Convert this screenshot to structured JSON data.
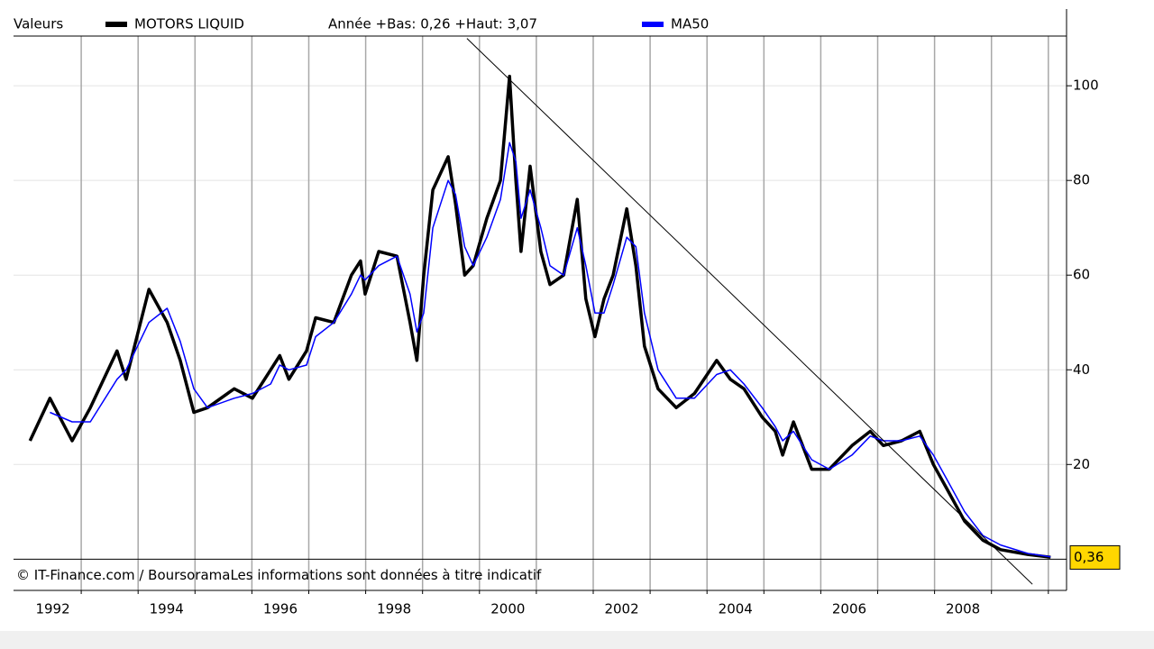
{
  "chart_data": {
    "type": "line",
    "legend_title": "Valeurs",
    "stats": "Année +Bas: 0,26 +Haut: 3,07",
    "footer": "© IT-Finance.com / BoursoramaLes informations sont données à titre indicatif",
    "x": [
      1992.1,
      1992.45,
      1992.84,
      1993.16,
      1993.63,
      1993.79,
      1994.19,
      1994.51,
      1994.74,
      1994.98,
      1995.22,
      1995.69,
      1996.01,
      1996.33,
      1996.49,
      1996.65,
      1996.96,
      1997.12,
      1997.44,
      1997.75,
      1997.91,
      1997.99,
      1998.23,
      1998.55,
      1998.78,
      1998.9,
      1999.02,
      1999.18,
      1999.45,
      1999.58,
      1999.74,
      1999.89,
      2000.13,
      2000.37,
      2000.53,
      2000.64,
      2000.73,
      2000.89,
      2001.08,
      2001.24,
      2001.48,
      2001.72,
      2001.87,
      2002.03,
      2002.19,
      2002.35,
      2002.59,
      2002.75,
      2002.9,
      2003.14,
      2003.46,
      2003.78,
      2004.17,
      2004.41,
      2004.65,
      2004.97,
      2005.2,
      2005.33,
      2005.52,
      2005.84,
      2006.15,
      2006.55,
      2006.87,
      2007.1,
      2007.42,
      2007.74,
      2007.98,
      2008.21,
      2008.53,
      2008.85,
      2009.16,
      2009.64,
      2010.04
    ],
    "series": [
      {
        "name": "MOTORS LIQUID",
        "color": "#000000",
        "values": [
          25,
          34,
          25,
          32,
          44,
          38,
          57,
          50,
          42,
          31,
          32,
          36,
          34,
          40,
          43,
          38,
          44,
          51,
          50,
          60,
          63,
          56,
          65,
          64,
          50,
          42,
          60,
          78,
          85,
          75,
          60,
          62,
          72,
          80,
          102,
          80,
          65,
          83,
          65,
          58,
          60,
          76,
          55,
          47,
          55,
          60,
          74,
          62,
          45,
          36,
          32,
          35,
          42,
          38,
          36,
          30,
          27,
          22,
          29,
          19,
          19,
          24,
          27,
          24,
          25,
          27,
          20,
          15,
          8,
          4,
          2,
          1,
          0.4
        ]
      },
      {
        "name": "MA50",
        "color": "#0000ff",
        "values": [
          null,
          31,
          29,
          29,
          38,
          40,
          50,
          53,
          46,
          36,
          32,
          34,
          35,
          37,
          41,
          40,
          41,
          47,
          50,
          56,
          60,
          59,
          62,
          64,
          56,
          48,
          52,
          70,
          80,
          77,
          66,
          62,
          68,
          76,
          88,
          84,
          72,
          78,
          70,
          62,
          60,
          70,
          62,
          52,
          52,
          58,
          68,
          66,
          52,
          40,
          34,
          34,
          39,
          40,
          37,
          32,
          28,
          25,
          27,
          21,
          19,
          22,
          26,
          25,
          25,
          26,
          22,
          17,
          10,
          5,
          3,
          1.2,
          0.5
        ]
      }
    ],
    "trendline": {
      "x": [
        1999.78,
        2009.72
      ],
      "y": [
        110,
        -5.3
      ]
    },
    "last_value": {
      "value": 0.36,
      "label": "0,36"
    },
    "xlim": [
      1991.81,
      2010.32
    ],
    "ylim": [
      -6.6,
      110.5
    ],
    "yticks": [
      20,
      40,
      60,
      80,
      100
    ],
    "xticks": [
      {
        "value": 1992.5,
        "label": "1992"
      },
      {
        "value": 1994.5,
        "label": "1994"
      },
      {
        "value": 1996.5,
        "label": "1996"
      },
      {
        "value": 1998.5,
        "label": "1998"
      },
      {
        "value": 2000.5,
        "label": "2000"
      },
      {
        "value": 2002.5,
        "label": "2002"
      },
      {
        "value": 2004.5,
        "label": "2004"
      },
      {
        "value": 2006.5,
        "label": "2006"
      },
      {
        "value": 2008.5,
        "label": "2008"
      }
    ],
    "xgrid": [
      1993,
      1994,
      1995,
      1996,
      1997,
      1998,
      1999,
      2000,
      2001,
      2002,
      2003,
      2004,
      2005,
      2006,
      2007,
      2008,
      2009,
      2010
    ],
    "grid": true
  }
}
